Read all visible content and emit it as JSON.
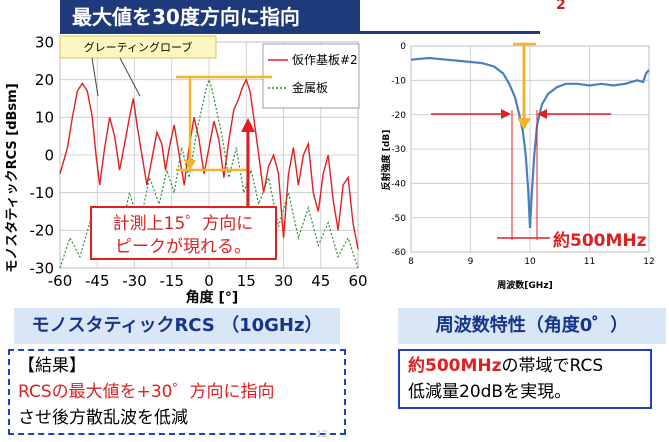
{
  "header": {
    "title": "最大値を30度方向に指向",
    "corner_text": "2"
  },
  "colors": {
    "navy": "#1f3a7a",
    "red": "#e02020",
    "blue_curve": "#4a7fc0",
    "green": "#2e8b2e",
    "orange": "#f2b430",
    "caption_bg": "#d9e6f5",
    "caption_text": "#16348a"
  },
  "chart_data": [
    {
      "type": "line",
      "xlabel": "角度 [°]",
      "ylabel": "モノスタティックRCS [dBsm]",
      "xlim": [
        -60,
        60
      ],
      "ylim": [
        -30,
        30
      ],
      "xticks": [
        "-60",
        "-45",
        "-30",
        "-15",
        "0",
        "15",
        "30",
        "45",
        "60"
      ],
      "yticks": [
        "30",
        "20",
        "10",
        "0",
        "-10",
        "-20",
        "-30"
      ],
      "grid": true,
      "legend_position": "top-right",
      "series": [
        {
          "name": "仮作基板#2",
          "color": "#e02020",
          "style": "solid",
          "x": [
            -60,
            -57,
            -55,
            -53,
            -51,
            -49,
            -47,
            -45.5,
            -44,
            -42,
            -40,
            -38,
            -36,
            -34,
            -32,
            -30.5,
            -29,
            -27,
            -25,
            -23,
            -21,
            -19,
            -17.5,
            -16,
            -14,
            -12,
            -10,
            -8,
            -6,
            -4,
            -2,
            0,
            2,
            4,
            6,
            8,
            10,
            12,
            13.5,
            15,
            16.5,
            18,
            20,
            22,
            24,
            26,
            28,
            30,
            32,
            34,
            36,
            38,
            40,
            42,
            44,
            46,
            48,
            50,
            52,
            54,
            56,
            58,
            60
          ],
          "y": [
            -5,
            2,
            10,
            17,
            19,
            17,
            10,
            0,
            -8,
            2,
            10,
            5,
            -4,
            3,
            10,
            15,
            8,
            0,
            -8,
            -1,
            6,
            3,
            -4,
            2,
            8,
            0,
            -8,
            2,
            10,
            4,
            -5,
            2,
            9,
            4,
            -6,
            4,
            12,
            15,
            18,
            20,
            17,
            10,
            0,
            -10,
            -3,
            0,
            -5,
            -22,
            -5,
            2,
            -8,
            0,
            3,
            -10,
            -15,
            -5,
            0,
            -12,
            -20,
            -8,
            -6,
            -18,
            -25
          ]
        },
        {
          "name": "金属板",
          "color": "#2e8b2e",
          "style": "dotted",
          "x": [
            -60,
            -56,
            -52,
            -48,
            -44,
            -40,
            -36,
            -32,
            -28,
            -24,
            -20,
            -17,
            -14,
            -11,
            -8,
            -5,
            -3,
            -1,
            0,
            1,
            3,
            5,
            8,
            11,
            14,
            17,
            20,
            24,
            28,
            32,
            36,
            40,
            44,
            48,
            52,
            56,
            60
          ],
          "y": [
            -30,
            -22,
            -27,
            -18,
            -24,
            -14,
            -22,
            -10,
            -19,
            -6,
            -13,
            -4,
            -10,
            2,
            -6,
            6,
            12,
            18,
            20,
            18,
            12,
            6,
            -6,
            2,
            -10,
            -4,
            -13,
            -6,
            -19,
            -10,
            -22,
            -14,
            -24,
            -18,
            -27,
            -22,
            -30
          ]
        }
      ],
      "annotations": [
        "グレーティングローブ",
        "計測上15゜方向に",
        "ピークが現れる。"
      ]
    },
    {
      "type": "line",
      "xlabel": "周波数[GHz]",
      "ylabel": "反射強度 [dB]",
      "xlim": [
        8,
        12
      ],
      "ylim": [
        -60,
        0
      ],
      "xticks": [
        "8",
        "9",
        "10",
        "11",
        "12"
      ],
      "yticks": [
        "0",
        "-10",
        "-20",
        "-30",
        "-40",
        "-50",
        "-60"
      ],
      "grid": true,
      "series": [
        {
          "color": "#4a7fc0",
          "x": [
            8.0,
            8.3,
            8.6,
            8.9,
            9.2,
            9.4,
            9.55,
            9.65,
            9.75,
            9.82,
            9.88,
            9.93,
            9.97,
            10.0,
            10.03,
            10.07,
            10.12,
            10.2,
            10.3,
            10.45,
            10.6,
            10.8,
            11.0,
            11.2,
            11.4,
            11.6,
            11.8,
            11.9,
            11.95,
            12.0
          ],
          "y": [
            -4,
            -3.5,
            -4,
            -4.5,
            -5,
            -6,
            -8,
            -11,
            -15,
            -20,
            -25,
            -32,
            -42,
            -53,
            -43,
            -32,
            -23,
            -17,
            -14,
            -12,
            -11,
            -11,
            -11.5,
            -11,
            -11.5,
            -11,
            -10,
            -10.5,
            -8,
            -7
          ]
        }
      ],
      "annotations": [
        "約500MHz"
      ]
    }
  ],
  "captions": {
    "left": "モノスタティックRCS （10GHz）",
    "right": "周波数特性（角度0゜）"
  },
  "result": {
    "line1": "【結果】",
    "line2": "RCSの最大値を+30゜方向に指向",
    "line3": "させ後方散乱波を低減"
  },
  "bandwidth": {
    "bold": "約500MHz",
    "rest1": "の帯域でRCS",
    "line2": "低減量20dBを実現。"
  },
  "page_number": "12"
}
